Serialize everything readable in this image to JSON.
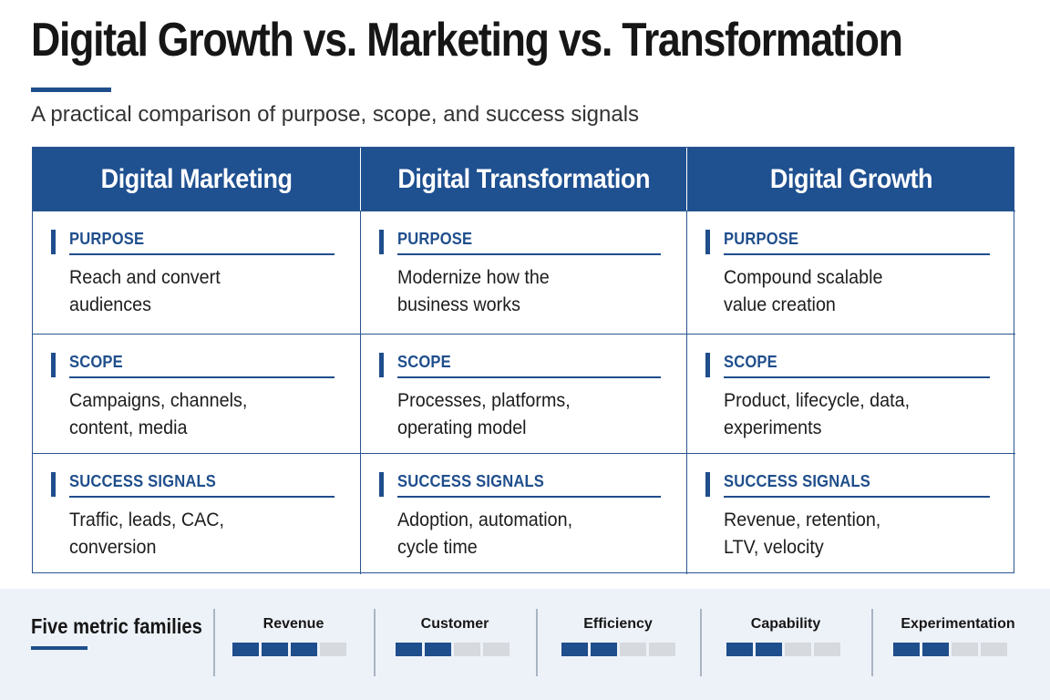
{
  "title": "Digital Growth vs. Marketing vs. Transformation",
  "subtitle": "A practical comparison of purpose, scope, and success signals",
  "columns": [
    {
      "heading": "Digital Marketing",
      "purpose": {
        "label": "PURPOSE",
        "text": "Reach and convert audiences"
      },
      "scope": {
        "label": "SCOPE",
        "text": "Campaigns, channels, content, media"
      },
      "signals": {
        "label": "SUCCESS SIGNALS",
        "text": "Traffic, leads, CAC, conversion"
      }
    },
    {
      "heading": "Digital Transformation",
      "purpose": {
        "label": "PURPOSE",
        "text": "Modernize how the business works"
      },
      "scope": {
        "label": "SCOPE",
        "text": "Processes, platforms, operating model"
      },
      "signals": {
        "label": "SUCCESS SIGNALS",
        "text": "Adoption, automation, cycle time"
      }
    },
    {
      "heading": "Digital Growth",
      "purpose": {
        "label": "PURPOSE",
        "text": "Compound scalable value creation"
      },
      "scope": {
        "label": "SCOPE",
        "text": "Product, lifecycle, data, experiments"
      },
      "signals": {
        "label": "SUCCESS SIGNALS",
        "text": "Revenue, retention, LTV, velocity"
      }
    }
  ],
  "footer": {
    "label": "Five metric families",
    "metrics": [
      {
        "name": "Revenue",
        "filled": 3,
        "total": 4
      },
      {
        "name": "Customer",
        "filled": 2,
        "total": 4
      },
      {
        "name": "Efficiency",
        "filled": 2,
        "total": 4
      },
      {
        "name": "Capability",
        "filled": 2,
        "total": 4
      },
      {
        "name": "Experimentation",
        "filled": 2,
        "total": 4
      }
    ]
  },
  "colors": {
    "accent": "#1f4e8c",
    "header_bg": "#1f5090",
    "footer_bg": "#edf2f9",
    "inactive_block": "#d6d9de"
  }
}
